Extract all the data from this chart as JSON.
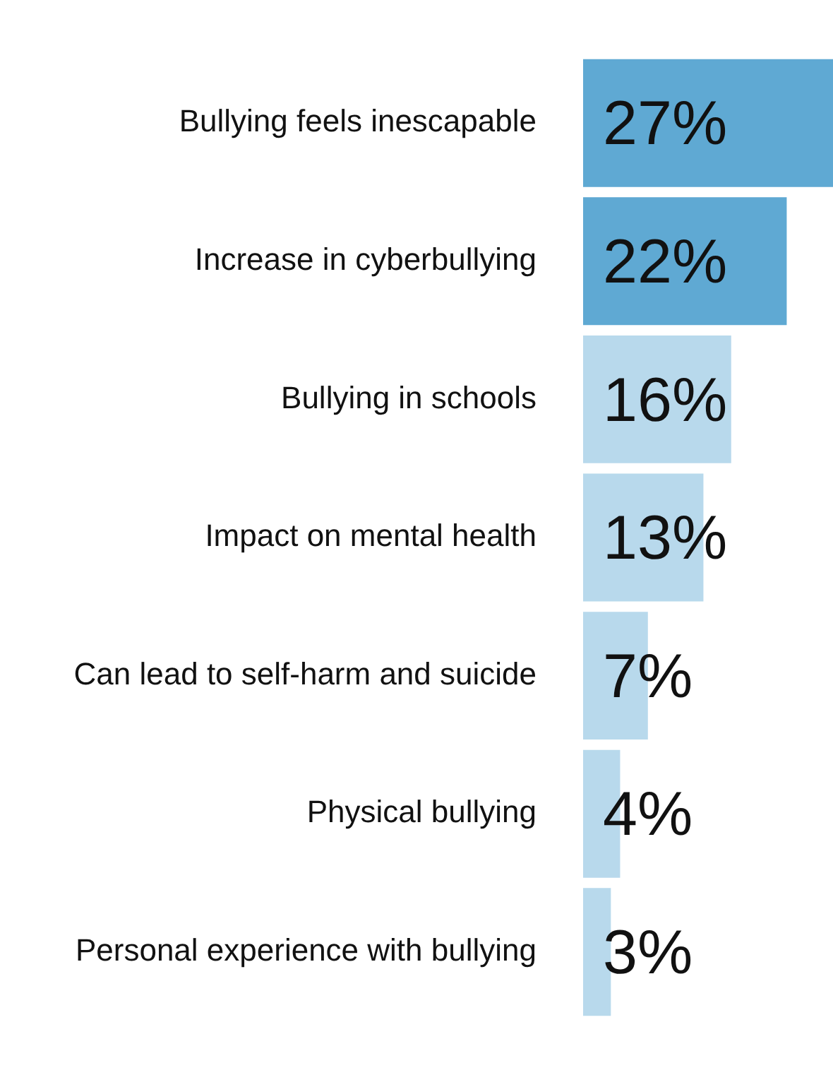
{
  "chart_data": {
    "type": "bar",
    "orientation": "horizontal",
    "categories": [
      "Bullying feels inescapable",
      "Increase in cyberbullying",
      "Bullying in schools",
      "Impact on mental health",
      "Can lead to self-harm and suicide",
      "Physical bullying",
      "Personal experience with bullying"
    ],
    "values": [
      27,
      22,
      16,
      13,
      7,
      4,
      3
    ],
    "colors": [
      "#5fa9d3",
      "#5fa9d3",
      "#b8d9ec",
      "#b8d9ec",
      "#b8d9ec",
      "#b8d9ec",
      "#b8d9ec"
    ],
    "value_labels": [
      "27%",
      "22%",
      "16%",
      "13%",
      "7%",
      "4%",
      "3%"
    ],
    "legend": false
  }
}
